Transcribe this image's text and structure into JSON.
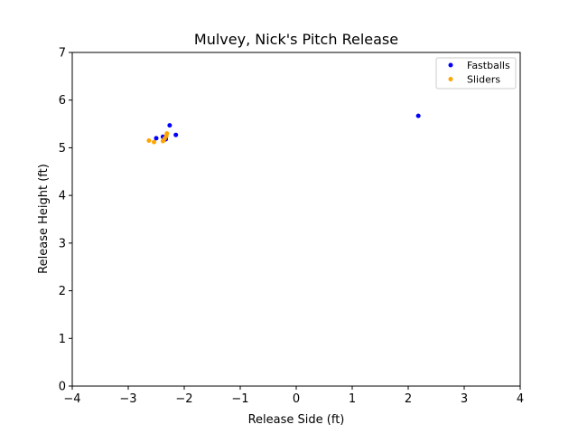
{
  "chart_data": {
    "type": "scatter",
    "title": "Mulvey, Nick's Pitch Release",
    "xlabel": "Release Side (ft)",
    "ylabel": "Release Height (ft)",
    "xlim": [
      -4,
      4
    ],
    "ylim": [
      0,
      7
    ],
    "xticks": [
      -4,
      -3,
      -2,
      -1,
      0,
      1,
      2,
      3,
      4
    ],
    "xtick_labels": [
      "−4",
      "−3",
      "−2",
      "−1",
      "0",
      "1",
      "2",
      "3",
      "4"
    ],
    "yticks": [
      0,
      1,
      2,
      3,
      4,
      5,
      6,
      7
    ],
    "ytick_labels": [
      "0",
      "1",
      "2",
      "3",
      "4",
      "5",
      "6",
      "7"
    ],
    "grid": false,
    "legend_position": "top-right",
    "series": [
      {
        "name": "Fastballs",
        "color": "#0000ff",
        "points": [
          {
            "x": -2.5,
            "y": 5.2
          },
          {
            "x": -2.38,
            "y": 5.23
          },
          {
            "x": -2.26,
            "y": 5.47
          },
          {
            "x": -2.15,
            "y": 5.27
          },
          {
            "x": -2.33,
            "y": 5.18
          },
          {
            "x": 2.18,
            "y": 5.67
          }
        ]
      },
      {
        "name": "Sliders",
        "color": "#ffa500",
        "points": [
          {
            "x": -2.63,
            "y": 5.15
          },
          {
            "x": -2.54,
            "y": 5.12
          },
          {
            "x": -2.38,
            "y": 5.14
          },
          {
            "x": -2.35,
            "y": 5.19
          },
          {
            "x": -2.32,
            "y": 5.25
          },
          {
            "x": -2.31,
            "y": 5.3
          }
        ]
      }
    ]
  }
}
